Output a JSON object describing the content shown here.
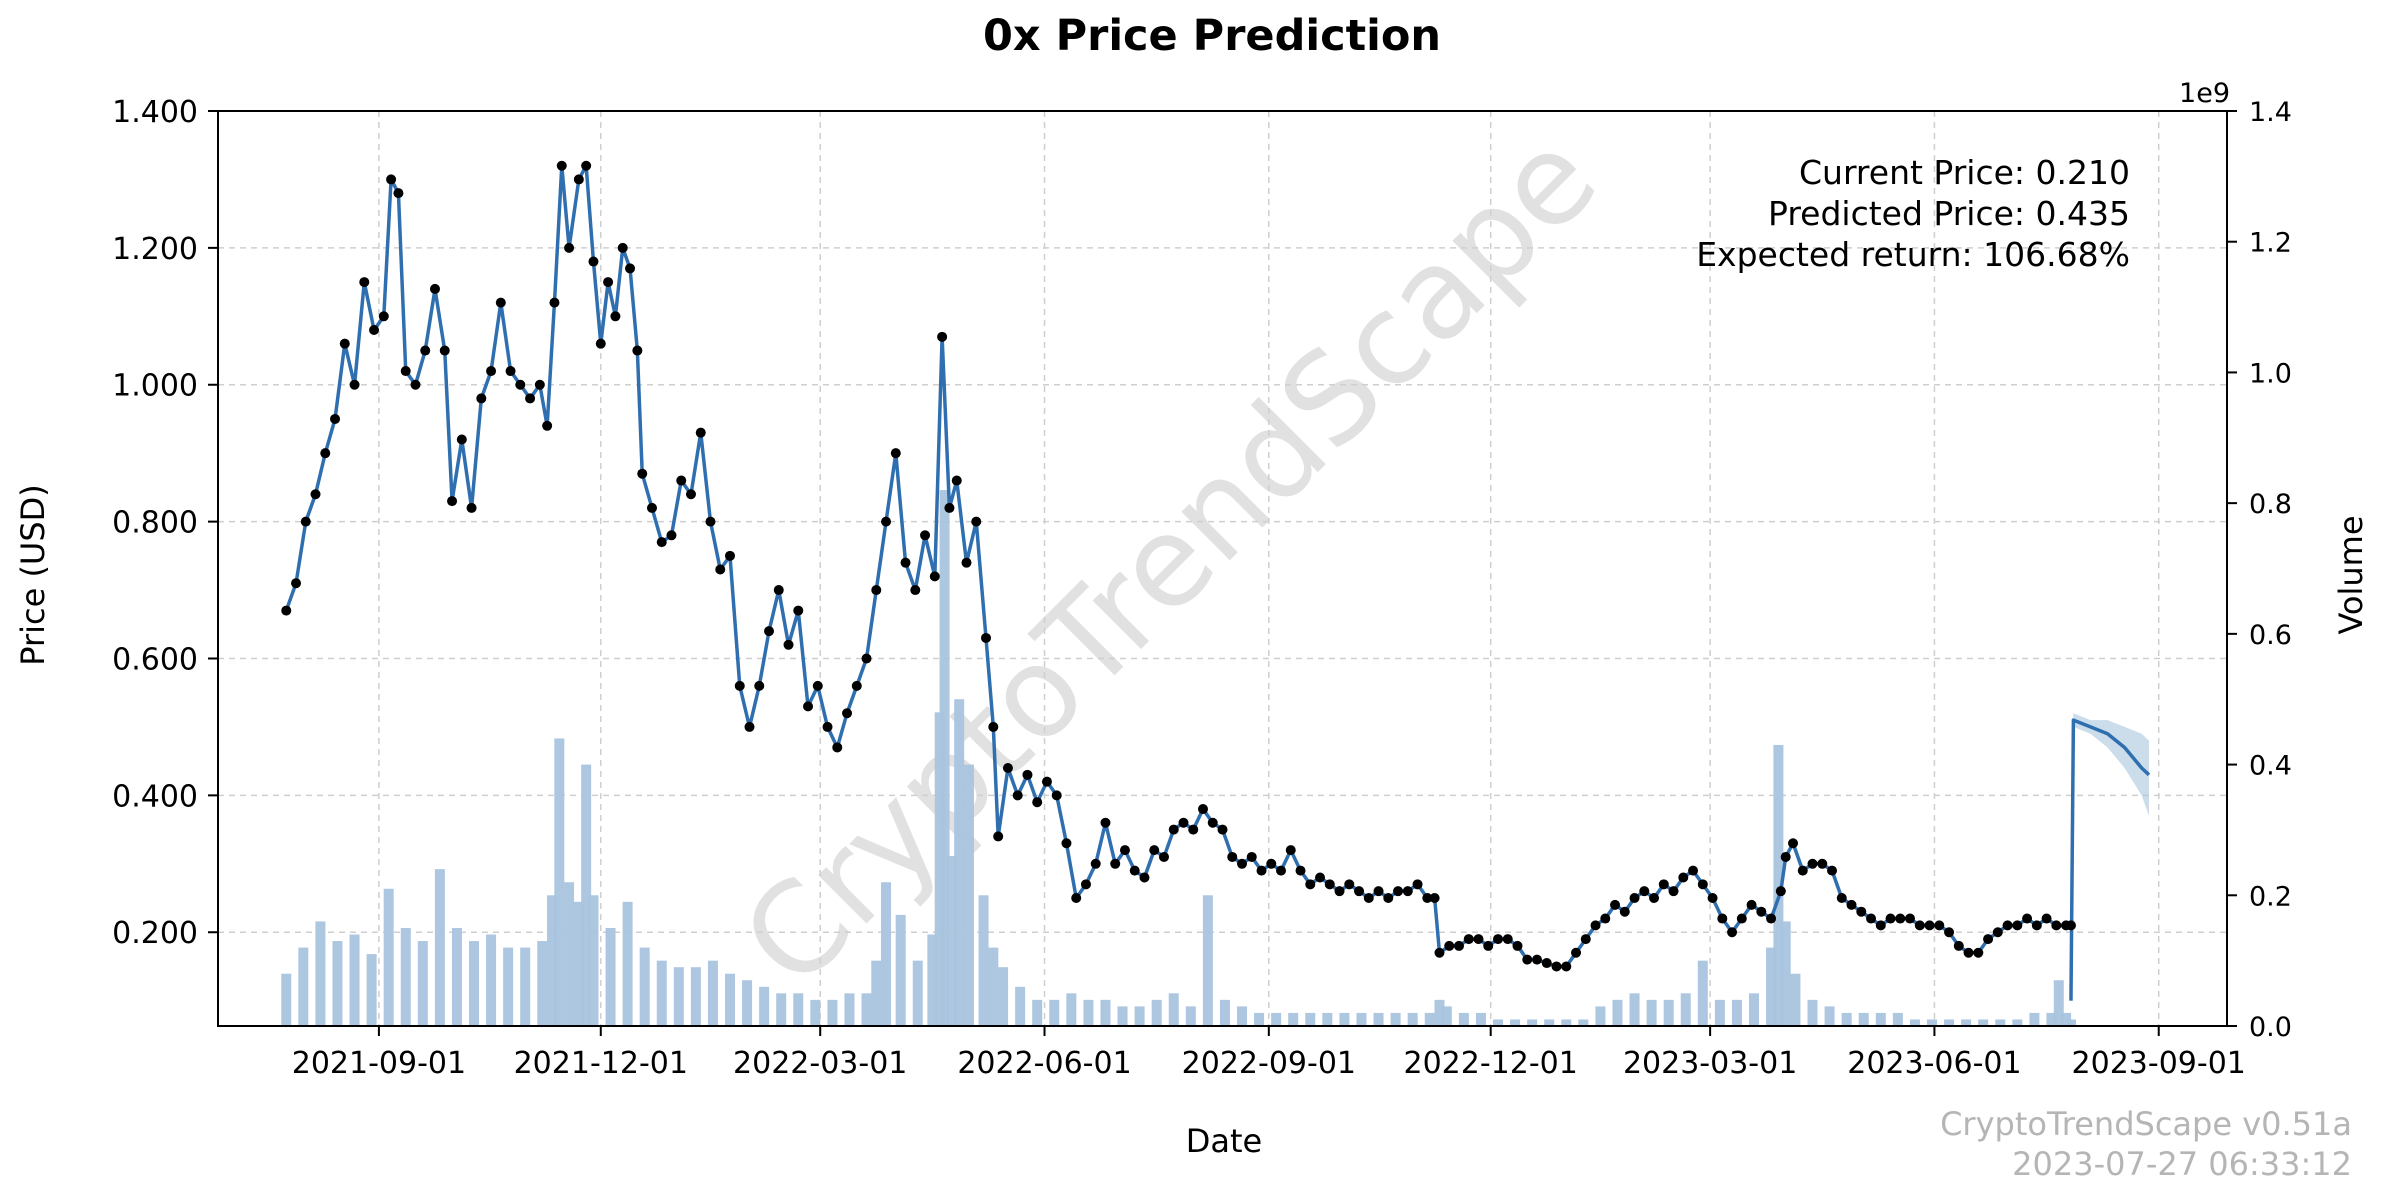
{
  "chart_data": {
    "type": "line",
    "title": "0x Price Prediction",
    "xlabel": "Date",
    "ylabel": "Price (USD)",
    "y2label": "Volume",
    "y2_exponent": "1e9",
    "x_ticks": [
      "2021-09-01",
      "2021-12-01",
      "2022-03-01",
      "2022-06-01",
      "2022-09-01",
      "2022-12-01",
      "2023-03-01",
      "2023-06-01",
      "2023-09-01"
    ],
    "y_ticks": [
      "0.200",
      "0.400",
      "0.600",
      "0.800",
      "1.000",
      "1.200",
      "1.400"
    ],
    "y2_ticks": [
      "0.0",
      "0.2",
      "0.4",
      "0.6",
      "0.8",
      "1.0",
      "1.2",
      "1.4"
    ],
    "xlim": [
      "2021-06-27",
      "2023-09-29"
    ],
    "ylim": [
      0.063,
      1.4
    ],
    "y2lim": [
      0,
      1.4
    ],
    "grid": true,
    "colors": {
      "line": "#2f6fb0",
      "markers": "#000000",
      "volume": "#a9c4de",
      "band": "#a9c4de"
    },
    "annotations": {
      "current_price": "Current Price: 0.210",
      "predicted_price": "Predicted Price: 0.435",
      "expected_return": "Expected return: 106.68%"
    },
    "watermark": "CryptoTrendScape",
    "footer": {
      "version": "CryptoTrendScape v0.51a",
      "timestamp": "2023-07-27 06:33:12"
    },
    "price_series": [
      [
        "2021-07-25",
        0.67
      ],
      [
        "2021-07-29",
        0.71
      ],
      [
        "2021-08-02",
        0.8
      ],
      [
        "2021-08-06",
        0.84
      ],
      [
        "2021-08-10",
        0.9
      ],
      [
        "2021-08-14",
        0.95
      ],
      [
        "2021-08-18",
        1.06
      ],
      [
        "2021-08-22",
        1.0
      ],
      [
        "2021-08-26",
        1.15
      ],
      [
        "2021-08-30",
        1.08
      ],
      [
        "2021-09-03",
        1.1
      ],
      [
        "2021-09-06",
        1.3
      ],
      [
        "2021-09-09",
        1.28
      ],
      [
        "2021-09-12",
        1.02
      ],
      [
        "2021-09-16",
        1.0
      ],
      [
        "2021-09-20",
        1.05
      ],
      [
        "2021-09-24",
        1.14
      ],
      [
        "2021-09-28",
        1.05
      ],
      [
        "2021-10-01",
        0.83
      ],
      [
        "2021-10-05",
        0.92
      ],
      [
        "2021-10-09",
        0.82
      ],
      [
        "2021-10-13",
        0.98
      ],
      [
        "2021-10-17",
        1.02
      ],
      [
        "2021-10-21",
        1.12
      ],
      [
        "2021-10-25",
        1.02
      ],
      [
        "2021-10-29",
        1.0
      ],
      [
        "2021-11-02",
        0.98
      ],
      [
        "2021-11-06",
        1.0
      ],
      [
        "2021-11-09",
        0.94
      ],
      [
        "2021-11-12",
        1.12
      ],
      [
        "2021-11-15",
        1.32
      ],
      [
        "2021-11-18",
        1.2
      ],
      [
        "2021-11-22",
        1.3
      ],
      [
        "2021-11-25",
        1.32
      ],
      [
        "2021-11-28",
        1.18
      ],
      [
        "2021-12-01",
        1.06
      ],
      [
        "2021-12-04",
        1.15
      ],
      [
        "2021-12-07",
        1.1
      ],
      [
        "2021-12-10",
        1.2
      ],
      [
        "2021-12-13",
        1.17
      ],
      [
        "2021-12-16",
        1.05
      ],
      [
        "2021-12-18",
        0.87
      ],
      [
        "2021-12-22",
        0.82
      ],
      [
        "2021-12-26",
        0.77
      ],
      [
        "2021-12-30",
        0.78
      ],
      [
        "2022-01-03",
        0.86
      ],
      [
        "2022-01-07",
        0.84
      ],
      [
        "2022-01-11",
        0.93
      ],
      [
        "2022-01-15",
        0.8
      ],
      [
        "2022-01-19",
        0.73
      ],
      [
        "2022-01-23",
        0.75
      ],
      [
        "2022-01-27",
        0.56
      ],
      [
        "2022-01-31",
        0.5
      ],
      [
        "2022-02-04",
        0.56
      ],
      [
        "2022-02-08",
        0.64
      ],
      [
        "2022-02-12",
        0.7
      ],
      [
        "2022-02-16",
        0.62
      ],
      [
        "2022-02-20",
        0.67
      ],
      [
        "2022-02-24",
        0.53
      ],
      [
        "2022-02-28",
        0.56
      ],
      [
        "2022-03-04",
        0.5
      ],
      [
        "2022-03-08",
        0.47
      ],
      [
        "2022-03-12",
        0.52
      ],
      [
        "2022-03-16",
        0.56
      ],
      [
        "2022-03-20",
        0.6
      ],
      [
        "2022-03-24",
        0.7
      ],
      [
        "2022-03-28",
        0.8
      ],
      [
        "2022-04-01",
        0.9
      ],
      [
        "2022-04-05",
        0.74
      ],
      [
        "2022-04-09",
        0.7
      ],
      [
        "2022-04-13",
        0.78
      ],
      [
        "2022-04-17",
        0.72
      ],
      [
        "2022-04-20",
        1.07
      ],
      [
        "2022-04-23",
        0.82
      ],
      [
        "2022-04-26",
        0.86
      ],
      [
        "2022-04-30",
        0.74
      ],
      [
        "2022-05-04",
        0.8
      ],
      [
        "2022-05-08",
        0.63
      ],
      [
        "2022-05-11",
        0.5
      ],
      [
        "2022-05-13",
        0.34
      ],
      [
        "2022-05-17",
        0.44
      ],
      [
        "2022-05-21",
        0.4
      ],
      [
        "2022-05-25",
        0.43
      ],
      [
        "2022-05-29",
        0.39
      ],
      [
        "2022-06-02",
        0.42
      ],
      [
        "2022-06-06",
        0.4
      ],
      [
        "2022-06-10",
        0.33
      ],
      [
        "2022-06-14",
        0.25
      ],
      [
        "2022-06-18",
        0.27
      ],
      [
        "2022-06-22",
        0.3
      ],
      [
        "2022-06-26",
        0.36
      ],
      [
        "2022-06-30",
        0.3
      ],
      [
        "2022-07-04",
        0.32
      ],
      [
        "2022-07-08",
        0.29
      ],
      [
        "2022-07-12",
        0.28
      ],
      [
        "2022-07-16",
        0.32
      ],
      [
        "2022-07-20",
        0.31
      ],
      [
        "2022-07-24",
        0.35
      ],
      [
        "2022-07-28",
        0.36
      ],
      [
        "2022-08-01",
        0.35
      ],
      [
        "2022-08-05",
        0.38
      ],
      [
        "2022-08-09",
        0.36
      ],
      [
        "2022-08-13",
        0.35
      ],
      [
        "2022-08-17",
        0.31
      ],
      [
        "2022-08-21",
        0.3
      ],
      [
        "2022-08-25",
        0.31
      ],
      [
        "2022-08-29",
        0.29
      ],
      [
        "2022-09-02",
        0.3
      ],
      [
        "2022-09-06",
        0.29
      ],
      [
        "2022-09-10",
        0.32
      ],
      [
        "2022-09-14",
        0.29
      ],
      [
        "2022-09-18",
        0.27
      ],
      [
        "2022-09-22",
        0.28
      ],
      [
        "2022-09-26",
        0.27
      ],
      [
        "2022-09-30",
        0.26
      ],
      [
        "2022-10-04",
        0.27
      ],
      [
        "2022-10-08",
        0.26
      ],
      [
        "2022-10-12",
        0.25
      ],
      [
        "2022-10-16",
        0.26
      ],
      [
        "2022-10-20",
        0.25
      ],
      [
        "2022-10-24",
        0.26
      ],
      [
        "2022-10-28",
        0.26
      ],
      [
        "2022-11-01",
        0.27
      ],
      [
        "2022-11-05",
        0.25
      ],
      [
        "2022-11-08",
        0.25
      ],
      [
        "2022-11-10",
        0.17
      ],
      [
        "2022-11-14",
        0.18
      ],
      [
        "2022-11-18",
        0.18
      ],
      [
        "2022-11-22",
        0.19
      ],
      [
        "2022-11-26",
        0.19
      ],
      [
        "2022-11-30",
        0.18
      ],
      [
        "2022-12-04",
        0.19
      ],
      [
        "2022-12-08",
        0.19
      ],
      [
        "2022-12-12",
        0.18
      ],
      [
        "2022-12-16",
        0.16
      ],
      [
        "2022-12-20",
        0.16
      ],
      [
        "2022-12-24",
        0.155
      ],
      [
        "2022-12-28",
        0.15
      ],
      [
        "2023-01-01",
        0.15
      ],
      [
        "2023-01-05",
        0.17
      ],
      [
        "2023-01-09",
        0.19
      ],
      [
        "2023-01-13",
        0.21
      ],
      [
        "2023-01-17",
        0.22
      ],
      [
        "2023-01-21",
        0.24
      ],
      [
        "2023-01-25",
        0.23
      ],
      [
        "2023-01-29",
        0.25
      ],
      [
        "2023-02-02",
        0.26
      ],
      [
        "2023-02-06",
        0.25
      ],
      [
        "2023-02-10",
        0.27
      ],
      [
        "2023-02-14",
        0.26
      ],
      [
        "2023-02-18",
        0.28
      ],
      [
        "2023-02-22",
        0.29
      ],
      [
        "2023-02-26",
        0.27
      ],
      [
        "2023-03-02",
        0.25
      ],
      [
        "2023-03-06",
        0.22
      ],
      [
        "2023-03-10",
        0.2
      ],
      [
        "2023-03-14",
        0.22
      ],
      [
        "2023-03-18",
        0.24
      ],
      [
        "2023-03-22",
        0.23
      ],
      [
        "2023-03-26",
        0.22
      ],
      [
        "2023-03-30",
        0.26
      ],
      [
        "2023-04-01",
        0.31
      ],
      [
        "2023-04-04",
        0.33
      ],
      [
        "2023-04-08",
        0.29
      ],
      [
        "2023-04-12",
        0.3
      ],
      [
        "2023-04-16",
        0.3
      ],
      [
        "2023-04-20",
        0.29
      ],
      [
        "2023-04-24",
        0.25
      ],
      [
        "2023-04-28",
        0.24
      ],
      [
        "2023-05-02",
        0.23
      ],
      [
        "2023-05-06",
        0.22
      ],
      [
        "2023-05-10",
        0.21
      ],
      [
        "2023-05-14",
        0.22
      ],
      [
        "2023-05-18",
        0.22
      ],
      [
        "2023-05-22",
        0.22
      ],
      [
        "2023-05-26",
        0.21
      ],
      [
        "2023-05-30",
        0.21
      ],
      [
        "2023-06-03",
        0.21
      ],
      [
        "2023-06-07",
        0.2
      ],
      [
        "2023-06-11",
        0.18
      ],
      [
        "2023-06-15",
        0.17
      ],
      [
        "2023-06-19",
        0.17
      ],
      [
        "2023-06-23",
        0.19
      ],
      [
        "2023-06-27",
        0.2
      ],
      [
        "2023-07-01",
        0.21
      ],
      [
        "2023-07-05",
        0.21
      ],
      [
        "2023-07-09",
        0.22
      ],
      [
        "2023-07-13",
        0.21
      ],
      [
        "2023-07-17",
        0.22
      ],
      [
        "2023-07-21",
        0.21
      ],
      [
        "2023-07-25",
        0.21
      ],
      [
        "2023-07-27",
        0.21
      ]
    ],
    "prediction_series": [
      [
        "2023-07-27",
        0.1
      ],
      [
        "2023-07-28",
        0.51
      ],
      [
        "2023-08-04",
        0.5
      ],
      [
        "2023-08-11",
        0.49
      ],
      [
        "2023-08-18",
        0.47
      ],
      [
        "2023-08-25",
        0.44
      ],
      [
        "2023-08-28",
        0.43
      ]
    ],
    "prediction_band": {
      "upper": [
        [
          "2023-07-28",
          0.52
        ],
        [
          "2023-08-04",
          0.51
        ],
        [
          "2023-08-11",
          0.51
        ],
        [
          "2023-08-18",
          0.5
        ],
        [
          "2023-08-25",
          0.49
        ],
        [
          "2023-08-28",
          0.48
        ]
      ],
      "lower": [
        [
          "2023-07-28",
          0.5
        ],
        [
          "2023-08-04",
          0.49
        ],
        [
          "2023-08-11",
          0.47
        ],
        [
          "2023-08-18",
          0.44
        ],
        [
          "2023-08-25",
          0.4
        ],
        [
          "2023-08-28",
          0.37
        ]
      ]
    },
    "volume_series": [
      [
        "2021-07-25",
        0.08
      ],
      [
        "2021-08-01",
        0.12
      ],
      [
        "2021-08-08",
        0.16
      ],
      [
        "2021-08-15",
        0.13
      ],
      [
        "2021-08-22",
        0.14
      ],
      [
        "2021-08-29",
        0.11
      ],
      [
        "2021-09-05",
        0.21
      ],
      [
        "2021-09-12",
        0.15
      ],
      [
        "2021-09-19",
        0.13
      ],
      [
        "2021-09-26",
        0.24
      ],
      [
        "2021-10-03",
        0.15
      ],
      [
        "2021-10-10",
        0.13
      ],
      [
        "2021-10-17",
        0.14
      ],
      [
        "2021-10-24",
        0.12
      ],
      [
        "2021-10-31",
        0.12
      ],
      [
        "2021-11-07",
        0.13
      ],
      [
        "2021-11-11",
        0.2
      ],
      [
        "2021-11-14",
        0.44
      ],
      [
        "2021-11-18",
        0.22
      ],
      [
        "2021-11-22",
        0.19
      ],
      [
        "2021-11-25",
        0.4
      ],
      [
        "2021-11-28",
        0.2
      ],
      [
        "2021-12-05",
        0.15
      ],
      [
        "2021-12-12",
        0.19
      ],
      [
        "2021-12-19",
        0.12
      ],
      [
        "2021-12-26",
        0.1
      ],
      [
        "2022-01-02",
        0.09
      ],
      [
        "2022-01-09",
        0.09
      ],
      [
        "2022-01-16",
        0.1
      ],
      [
        "2022-01-23",
        0.08
      ],
      [
        "2022-01-30",
        0.07
      ],
      [
        "2022-02-06",
        0.06
      ],
      [
        "2022-02-13",
        0.05
      ],
      [
        "2022-02-20",
        0.05
      ],
      [
        "2022-02-27",
        0.04
      ],
      [
        "2022-03-06",
        0.04
      ],
      [
        "2022-03-13",
        0.05
      ],
      [
        "2022-03-20",
        0.05
      ],
      [
        "2022-03-24",
        0.1
      ],
      [
        "2022-03-28",
        0.22
      ],
      [
        "2022-04-03",
        0.17
      ],
      [
        "2022-04-10",
        0.1
      ],
      [
        "2022-04-16",
        0.14
      ],
      [
        "2022-04-19",
        0.48
      ],
      [
        "2022-04-21",
        0.82
      ],
      [
        "2022-04-24",
        0.26
      ],
      [
        "2022-04-27",
        0.5
      ],
      [
        "2022-05-01",
        0.4
      ],
      [
        "2022-05-07",
        0.2
      ],
      [
        "2022-05-11",
        0.12
      ],
      [
        "2022-05-15",
        0.09
      ],
      [
        "2022-05-22",
        0.06
      ],
      [
        "2022-05-29",
        0.04
      ],
      [
        "2022-06-05",
        0.04
      ],
      [
        "2022-06-12",
        0.05
      ],
      [
        "2022-06-19",
        0.04
      ],
      [
        "2022-06-26",
        0.04
      ],
      [
        "2022-07-03",
        0.03
      ],
      [
        "2022-07-10",
        0.03
      ],
      [
        "2022-07-17",
        0.04
      ],
      [
        "2022-07-24",
        0.05
      ],
      [
        "2022-07-31",
        0.03
      ],
      [
        "2022-08-07",
        0.2
      ],
      [
        "2022-08-14",
        0.04
      ],
      [
        "2022-08-21",
        0.03
      ],
      [
        "2022-08-28",
        0.02
      ],
      [
        "2022-09-04",
        0.02
      ],
      [
        "2022-09-11",
        0.02
      ],
      [
        "2022-09-18",
        0.02
      ],
      [
        "2022-09-25",
        0.02
      ],
      [
        "2022-10-02",
        0.02
      ],
      [
        "2022-10-09",
        0.02
      ],
      [
        "2022-10-16",
        0.02
      ],
      [
        "2022-10-23",
        0.02
      ],
      [
        "2022-10-30",
        0.02
      ],
      [
        "2022-11-06",
        0.02
      ],
      [
        "2022-11-10",
        0.04
      ],
      [
        "2022-11-13",
        0.03
      ],
      [
        "2022-11-20",
        0.02
      ],
      [
        "2022-11-27",
        0.02
      ],
      [
        "2022-12-04",
        0.01
      ],
      [
        "2022-12-11",
        0.01
      ],
      [
        "2022-12-18",
        0.01
      ],
      [
        "2022-12-25",
        0.01
      ],
      [
        "2023-01-01",
        0.01
      ],
      [
        "2023-01-08",
        0.01
      ],
      [
        "2023-01-15",
        0.03
      ],
      [
        "2023-01-22",
        0.04
      ],
      [
        "2023-01-29",
        0.05
      ],
      [
        "2023-02-05",
        0.04
      ],
      [
        "2023-02-12",
        0.04
      ],
      [
        "2023-02-19",
        0.05
      ],
      [
        "2023-02-26",
        0.1
      ],
      [
        "2023-03-05",
        0.04
      ],
      [
        "2023-03-12",
        0.04
      ],
      [
        "2023-03-19",
        0.05
      ],
      [
        "2023-03-26",
        0.12
      ],
      [
        "2023-03-29",
        0.43
      ],
      [
        "2023-04-01",
        0.16
      ],
      [
        "2023-04-05",
        0.08
      ],
      [
        "2023-04-12",
        0.04
      ],
      [
        "2023-04-19",
        0.03
      ],
      [
        "2023-04-26",
        0.02
      ],
      [
        "2023-05-03",
        0.02
      ],
      [
        "2023-05-10",
        0.02
      ],
      [
        "2023-05-17",
        0.02
      ],
      [
        "2023-05-24",
        0.01
      ],
      [
        "2023-05-31",
        0.01
      ],
      [
        "2023-06-07",
        0.01
      ],
      [
        "2023-06-14",
        0.01
      ],
      [
        "2023-06-21",
        0.01
      ],
      [
        "2023-06-28",
        0.01
      ],
      [
        "2023-07-05",
        0.01
      ],
      [
        "2023-07-12",
        0.02
      ],
      [
        "2023-07-19",
        0.02
      ],
      [
        "2023-07-22",
        0.07
      ],
      [
        "2023-07-25",
        0.02
      ],
      [
        "2023-07-27",
        0.01
      ]
    ]
  }
}
